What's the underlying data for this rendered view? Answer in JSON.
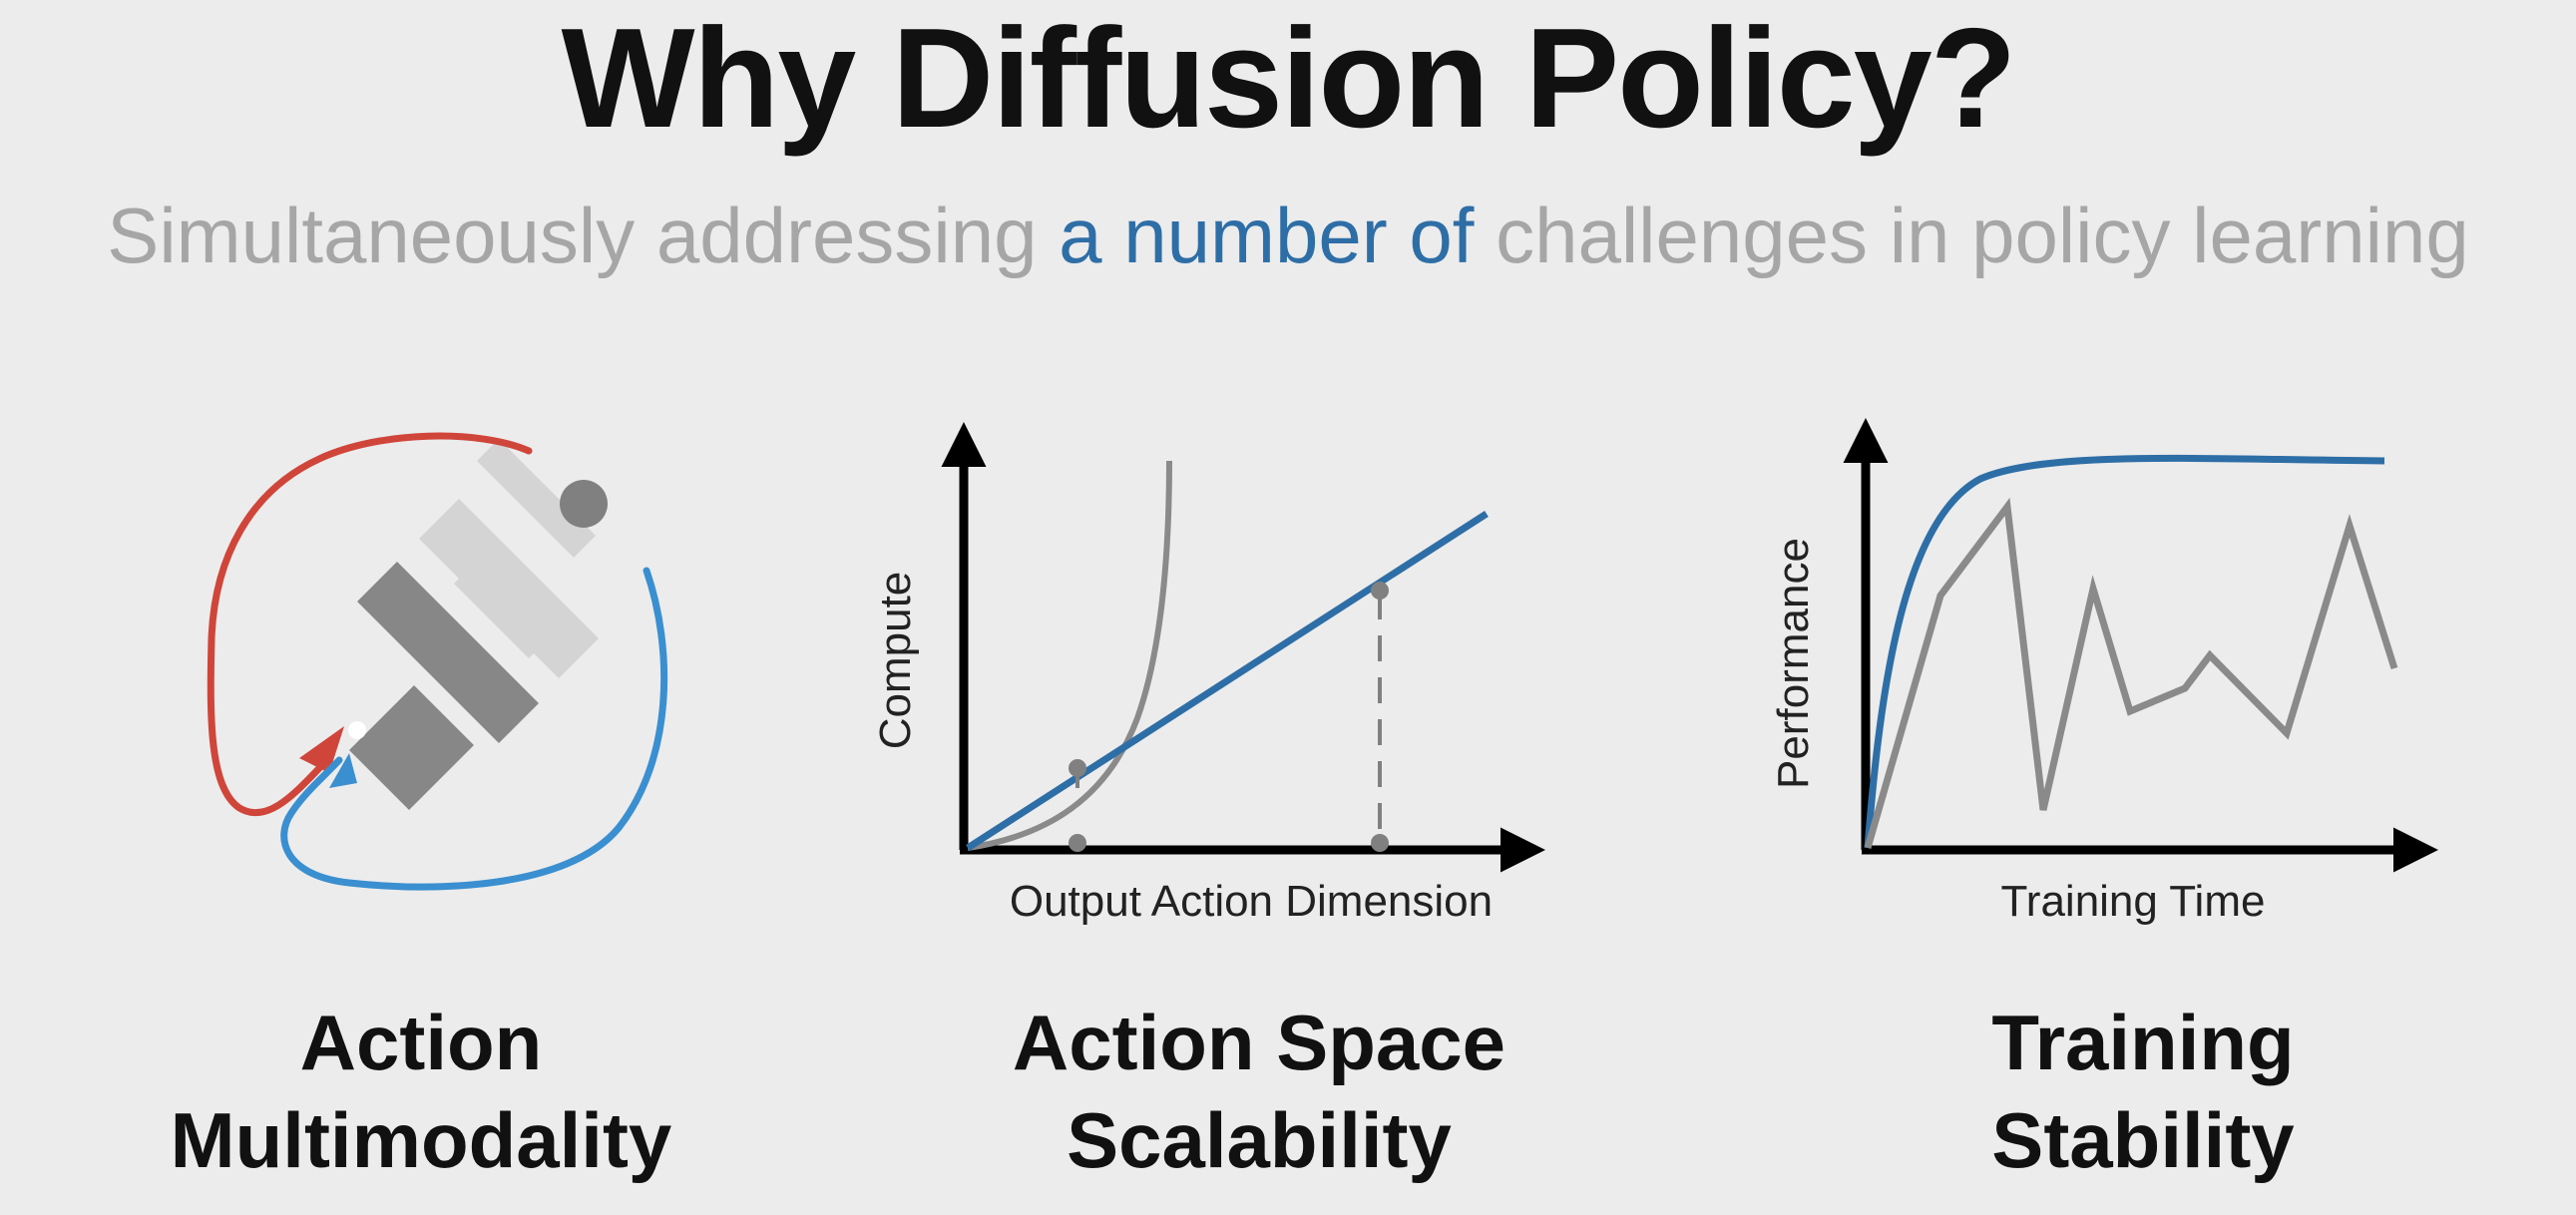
{
  "title": "Why Diffusion Policy?",
  "subtitle": {
    "part1": "Simultaneously addressing ",
    "highlight": "a number of",
    "part2": " challenges in policy learning"
  },
  "colors": {
    "red": "#d0453a",
    "blue": "#3a8fd0",
    "line_blue": "#2e6ea6",
    "gray": "#8a8a8a",
    "highlight": "#2e6ea6"
  },
  "panels": [
    {
      "caption_line1": "Action",
      "caption_line2": "Multimodality"
    },
    {
      "caption_line1": "Action Space",
      "caption_line2": "Scalability",
      "xlabel": "Output Action Dimension",
      "ylabel": "Compute"
    },
    {
      "caption_line1": "Training",
      "caption_line2": "Stability",
      "xlabel": "Training Time",
      "ylabel": "Performance"
    }
  ]
}
